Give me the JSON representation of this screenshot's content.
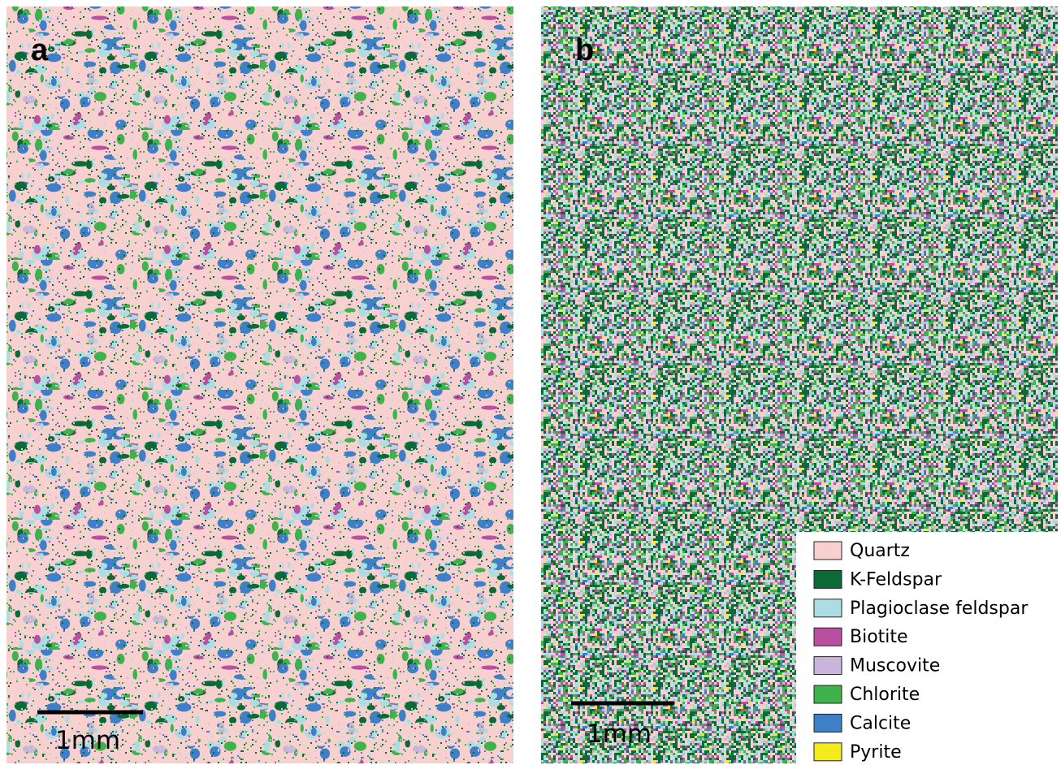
{
  "panels": [
    {
      "label": "a",
      "scale_bar": "1mm"
    },
    {
      "label": "b",
      "scale_bar": "1mm"
    }
  ],
  "legend": [
    {
      "name": "Quartz",
      "color": "#f8d0d0"
    },
    {
      "name": "K-Feldspar",
      "color": "#0b6a36"
    },
    {
      "name": "Plagioclase feldspar",
      "color": "#abdde3"
    },
    {
      "name": "Biotite",
      "color": "#b8509f"
    },
    {
      "name": "Muscovite",
      "color": "#cbb4da"
    },
    {
      "name": "Chlorite",
      "color": "#3fb34b"
    },
    {
      "name": "Calcite",
      "color": "#3f7fc8"
    },
    {
      "name": "Pyrite",
      "color": "#f4eb1c"
    }
  ]
}
